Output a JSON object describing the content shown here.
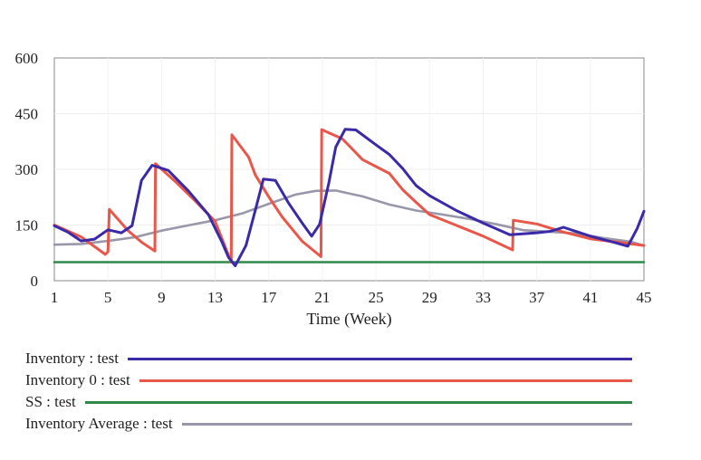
{
  "chart_data": {
    "type": "line",
    "title": "",
    "xlabel": "Time (Week)",
    "ylabel": "",
    "xlim": [
      1,
      45
    ],
    "ylim": [
      0,
      600
    ],
    "x_ticks": [
      1,
      5,
      9,
      13,
      17,
      21,
      25,
      29,
      33,
      37,
      41,
      45
    ],
    "y_ticks": [
      0,
      150,
      300,
      450,
      600
    ],
    "grid": true,
    "legend_placement": "bottom",
    "series": [
      {
        "name": "Inventory : test",
        "color": "#3a2aa8",
        "x": [
          1,
          2,
          3,
          4,
          5,
          6,
          6.8,
          7.5,
          8.3,
          9.5,
          11,
          12.5,
          13.5,
          14,
          14.5,
          15.3,
          16,
          16.6,
          17.5,
          18.5,
          19.5,
          20.2,
          20.8,
          21.5,
          22,
          22.7,
          23.5,
          25,
          26,
          27,
          28,
          29,
          31,
          33,
          35,
          37,
          38,
          39,
          41,
          43,
          43.8,
          44.5,
          45
        ],
        "y": [
          148,
          131,
          107,
          112,
          137,
          129,
          148,
          270,
          311,
          297,
          242,
          178,
          105,
          63,
          40,
          95,
          190,
          274,
          270,
          208,
          155,
          120,
          152,
          266,
          360,
          408,
          406,
          366,
          340,
          302,
          256,
          229,
          189,
          155,
          124,
          129,
          133,
          144,
          120,
          101,
          93,
          141,
          187
        ]
      },
      {
        "name": "Inventory 0 : test",
        "color": "#e8574a",
        "x": [
          1,
          3,
          4.8,
          5,
          5.1,
          6.5,
          7.5,
          8.5,
          8.55,
          10,
          11.5,
          13,
          14.2,
          14.25,
          15.5,
          16,
          17,
          18,
          19.5,
          20.9,
          20.95,
          22.5,
          24,
          26,
          27,
          28,
          29,
          31,
          33,
          35.2,
          35.25,
          37,
          39,
          41,
          43,
          45
        ],
        "y": [
          150,
          118,
          71,
          78,
          192,
          135,
          104,
          80,
          315,
          268,
          215,
          160,
          50,
          393,
          333,
          285,
          226,
          172,
          106,
          65,
          407,
          382,
          326,
          289,
          245,
          211,
          178,
          149,
          120,
          83,
          163,
          153,
          131,
          113,
          104,
          95
        ]
      },
      {
        "name": "SS : test",
        "color": "#2f8a4a",
        "x": [
          1,
          45
        ],
        "y": [
          50,
          50
        ]
      },
      {
        "name": "Inventory Average : test",
        "color": "#9a97ab",
        "x": [
          1,
          3,
          5,
          7,
          9,
          11,
          13,
          15,
          17,
          19,
          20.5,
          22,
          24,
          26,
          28,
          30,
          32,
          34,
          36,
          38,
          40,
          42,
          44,
          45
        ],
        "y": [
          97,
          99,
          107,
          117,
          135,
          149,
          163,
          181,
          207,
          232,
          242,
          243,
          227,
          205,
          189,
          178,
          166,
          152,
          136,
          132,
          127,
          115,
          105,
          95
        ]
      }
    ]
  }
}
